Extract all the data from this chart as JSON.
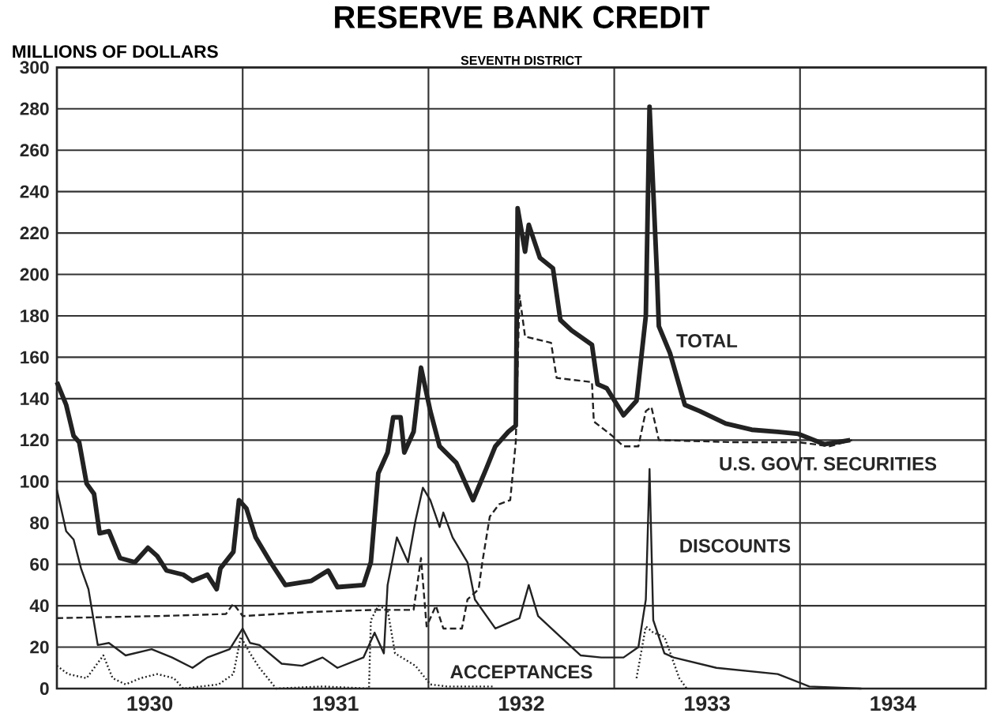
{
  "chart_data": {
    "type": "line",
    "title": "RESERVE BANK CREDIT",
    "subtitle": "SEVENTH DISTRICT",
    "ylabel": "MILLIONS OF DOLLARS",
    "xlim": [
      1930,
      1935
    ],
    "ylim": [
      0,
      300
    ],
    "xticks": [
      {
        "value": 1930.5,
        "label": "1930"
      },
      {
        "value": 1931.5,
        "label": "1931"
      },
      {
        "value": 1932.5,
        "label": "1932"
      },
      {
        "value": 1933.5,
        "label": "1933"
      },
      {
        "value": 1934.5,
        "label": "1934"
      },
      {
        "value": 1931,
        "label": null
      },
      {
        "value": 1932,
        "label": null
      },
      {
        "value": 1933,
        "label": null
      },
      {
        "value": 1934,
        "label": null
      }
    ],
    "yticks": [
      0,
      20,
      40,
      60,
      80,
      100,
      120,
      140,
      160,
      180,
      200,
      220,
      240,
      260,
      280,
      300
    ],
    "grid": true,
    "series": [
      {
        "name": "TOTAL",
        "color": "#222222",
        "line_style": "solid",
        "x": [
          1930.0,
          1930.05,
          1930.09,
          1930.12,
          1930.16,
          1930.2,
          1930.23,
          1930.28,
          1930.34,
          1930.42,
          1930.49,
          1930.54,
          1930.59,
          1930.68,
          1930.73,
          1930.81,
          1930.86,
          1930.88,
          1930.95,
          1930.98,
          1931.02,
          1931.07,
          1931.15,
          1931.23,
          1931.37,
          1931.46,
          1931.51,
          1931.65,
          1931.69,
          1931.73,
          1931.78,
          1931.81,
          1931.85,
          1931.87,
          1931.92,
          1931.96,
          1932.01,
          1932.06,
          1932.15,
          1932.24,
          1932.31,
          1932.36,
          1932.43,
          1932.47,
          1932.48,
          1932.52,
          1932.54,
          1932.6,
          1932.67,
          1932.71,
          1932.77,
          1932.88,
          1932.91,
          1932.96,
          1933.05,
          1933.12,
          1933.17,
          1933.19,
          1933.23,
          1933.24,
          1933.3,
          1933.38,
          1933.46,
          1933.6,
          1933.74,
          1933.88,
          1933.99,
          1934.13,
          1934.27
        ],
        "values": [
          148,
          137,
          122,
          119,
          99,
          94,
          75,
          76,
          63,
          61,
          68,
          64,
          57,
          55,
          52,
          55,
          48,
          58,
          66,
          91,
          87,
          73,
          61,
          50,
          52,
          57,
          49,
          50,
          61,
          104,
          114,
          131,
          131,
          114,
          124,
          155,
          134,
          117,
          109,
          91,
          106,
          117,
          124,
          127,
          232,
          211,
          224,
          208,
          203,
          178,
          173,
          166,
          147,
          145,
          132,
          139,
          180,
          281,
          200,
          175,
          162,
          137,
          134,
          128,
          125,
          124,
          123,
          118,
          120
        ]
      },
      {
        "name": "U.S. GOVT. SECURITIES",
        "color": "#222222",
        "line_style": "dashed",
        "x": [
          1930.0,
          1930.54,
          1930.91,
          1930.95,
          1931.0,
          1931.37,
          1931.71,
          1931.92,
          1931.96,
          1931.99,
          1932.04,
          1932.08,
          1932.18,
          1932.21,
          1932.27,
          1932.29,
          1932.33,
          1932.38,
          1932.44,
          1932.47,
          1932.49,
          1932.52,
          1932.66,
          1932.69,
          1932.88,
          1932.89,
          1932.99,
          1933.05,
          1933.13,
          1933.17,
          1933.2,
          1933.24,
          1933.63,
          1933.99,
          1934.16,
          1934.28
        ],
        "values": [
          34,
          35,
          36,
          41,
          35,
          37,
          38,
          38,
          63,
          30,
          40,
          29,
          29,
          43,
          48,
          61,
          83,
          89,
          91,
          119,
          190,
          170,
          167,
          150,
          148,
          129,
          122,
          117,
          117,
          134,
          136,
          120,
          119,
          119,
          117,
          120
        ]
      },
      {
        "name": "DISCOUNTS",
        "color": "#222222",
        "line_style": "solid",
        "x": [
          1930.0,
          1930.05,
          1930.09,
          1930.13,
          1930.17,
          1930.22,
          1930.28,
          1930.37,
          1930.51,
          1930.62,
          1930.73,
          1930.81,
          1930.93,
          1931.0,
          1931.04,
          1931.09,
          1931.21,
          1931.32,
          1931.43,
          1931.51,
          1931.65,
          1931.71,
          1931.76,
          1931.78,
          1931.83,
          1931.89,
          1931.93,
          1931.97,
          1932.01,
          1932.06,
          1932.08,
          1932.13,
          1932.21,
          1932.25,
          1932.36,
          1932.49,
          1932.54,
          1932.59,
          1932.71,
          1932.82,
          1932.93,
          1933.05,
          1933.13,
          1933.17,
          1933.19,
          1933.21,
          1933.27,
          1933.32,
          1933.55,
          1933.88,
          1934.05,
          1934.33
        ],
        "values": [
          96,
          76,
          72,
          58,
          48,
          21,
          22,
          16,
          19,
          15,
          10,
          15,
          19,
          29,
          22,
          21,
          12,
          11,
          15,
          10,
          15,
          27,
          17,
          50,
          73,
          61,
          81,
          97,
          91,
          78,
          85,
          73,
          61,
          43,
          29,
          34,
          50,
          35,
          25,
          16,
          15,
          15,
          20,
          43,
          106,
          33,
          17,
          15,
          10,
          7,
          1,
          0
        ]
      },
      {
        "name": "ACCEPTANCES",
        "color": "#222222",
        "line_style": "dotted",
        "x": [
          1930.0,
          1930.06,
          1930.16,
          1930.25,
          1930.3,
          1930.37,
          1930.45,
          1930.54,
          1930.63,
          1930.68,
          1930.87,
          1930.95,
          1930.99,
          1931.04,
          1931.09,
          1931.18,
          1931.43,
          1931.68,
          1931.69,
          1931.73,
          1931.78,
          1931.82,
          1931.93,
          1932.01,
          1932.1,
          1932.35,
          1932.7,
          1933.12,
          1933.17,
          1933.21,
          1933.27,
          1933.35,
          1933.39
        ],
        "values": [
          11,
          7,
          5,
          16,
          5,
          2,
          5,
          7,
          5,
          0,
          2,
          7,
          25,
          17,
          10,
          0,
          1,
          0,
          33,
          40,
          38,
          17,
          11,
          2,
          1,
          1,
          null,
          5,
          30,
          27,
          25,
          5,
          0
        ]
      }
    ]
  }
}
